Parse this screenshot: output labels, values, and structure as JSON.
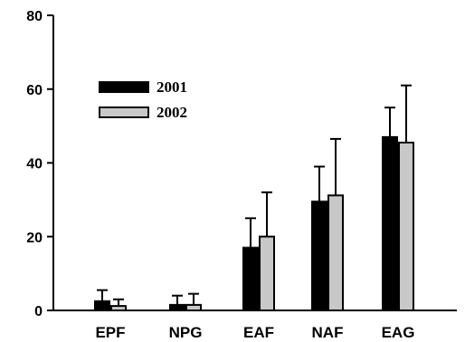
{
  "chart_data": {
    "type": "bar",
    "title": "",
    "xlabel": "",
    "ylabel": "",
    "ylim": [
      0,
      80
    ],
    "yticks": [
      0,
      20,
      40,
      60,
      80
    ],
    "categories": [
      "EPF",
      "NPG",
      "EAF",
      "NAF",
      "EAG"
    ],
    "legend_position": "upper-left",
    "grid": false,
    "series": [
      {
        "name": "2001",
        "color": "#000000",
        "values": [
          2.5,
          1.5,
          17,
          29.5,
          47
        ],
        "errors": [
          3,
          2.5,
          8,
          9.5,
          8
        ]
      },
      {
        "name": "2002",
        "color": "#c8c8c8",
        "values": [
          1.2,
          1.5,
          20,
          31.2,
          45.5
        ],
        "errors": [
          1.8,
          3,
          12,
          15.3,
          15.5
        ]
      }
    ]
  }
}
